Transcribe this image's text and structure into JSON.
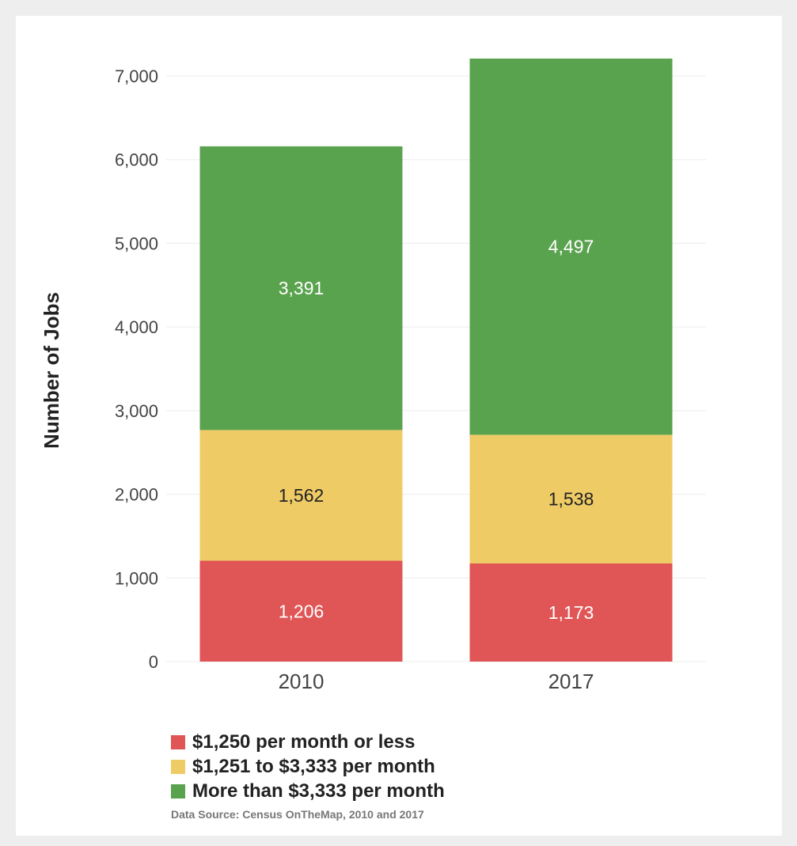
{
  "chart_data": {
    "type": "bar",
    "stacked": true,
    "categories": [
      "2010",
      "2017"
    ],
    "series": [
      {
        "name": "$1,250 per month or less",
        "color": "#e05555",
        "label_color": "#ffffff",
        "values": [
          1206,
          1173
        ]
      },
      {
        "name": "$1,251 to $3,333 per month",
        "color": "#efcb66",
        "label_color": "#222222",
        "values": [
          1562,
          1538
        ]
      },
      {
        "name": "More than $3,333 per month",
        "color": "#5aa34e",
        "label_color": "#ffffff",
        "values": [
          3391,
          4497
        ]
      }
    ],
    "ylabel": "Number of Jobs",
    "xlabel": "",
    "ylim": [
      0,
      7000
    ],
    "yticks": [
      0,
      1000,
      2000,
      3000,
      4000,
      5000,
      6000,
      7000
    ],
    "ytick_labels": [
      "0",
      "1,000",
      "2,000",
      "3,000",
      "4,000",
      "5,000",
      "6,000",
      "7,000"
    ],
    "data_labels": [
      [
        "1,206",
        "1,173"
      ],
      [
        "1,562",
        "1,538"
      ],
      [
        "3,391",
        "4,497"
      ]
    ],
    "grid": true,
    "legend_position": "bottom-left"
  },
  "source_note": "Data Source: Census OnTheMap, 2010 and 2017"
}
